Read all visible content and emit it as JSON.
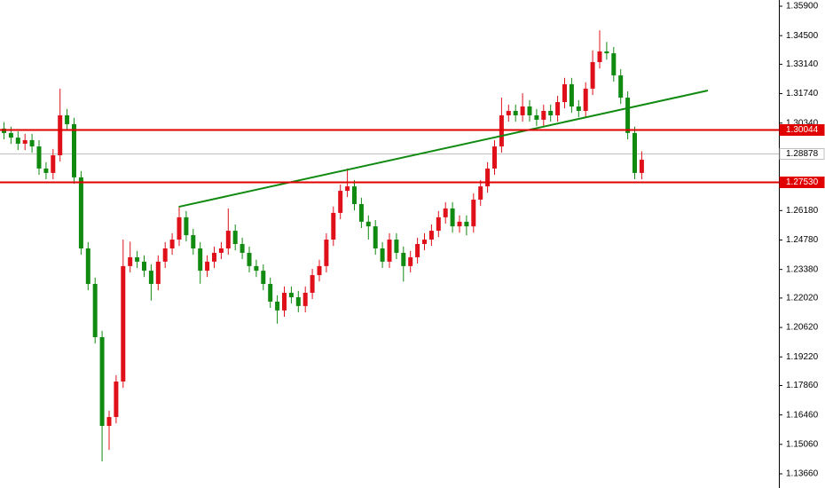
{
  "chart_data": {
    "type": "candlestick",
    "ylim": [
      1.12985,
      1.36195
    ],
    "yticks": [
      {
        "value": 1.359,
        "label": "1.35900"
      },
      {
        "value": 1.345,
        "label": "1.34500"
      },
      {
        "value": 1.3314,
        "label": "1.33140"
      },
      {
        "value": 1.3174,
        "label": "1.31740"
      },
      {
        "value": 1.3034,
        "label": "1.30340"
      },
      {
        "value": 1.2618,
        "label": "1.26180"
      },
      {
        "value": 1.2478,
        "label": "1.24780"
      },
      {
        "value": 1.2338,
        "label": "1.23380"
      },
      {
        "value": 1.2202,
        "label": "1.22020"
      },
      {
        "value": 1.2062,
        "label": "1.20620"
      },
      {
        "value": 1.1922,
        "label": "1.19220"
      },
      {
        "value": 1.1786,
        "label": "1.17860"
      },
      {
        "value": 1.1646,
        "label": "1.16460"
      },
      {
        "value": 1.1506,
        "label": "1.15060"
      },
      {
        "value": 1.1366,
        "label": "1.13660"
      }
    ],
    "up_color": "#e0101a",
    "down_color": "#108a10",
    "levels": [
      {
        "value": 1.30044,
        "label": "1.30044",
        "color": "#e00000"
      },
      {
        "value": 1.2753,
        "label": "1.27530",
        "color": "#e00000"
      }
    ],
    "current": {
      "value": 1.28878,
      "label": "1.28878",
      "color": "#c0c0c0"
    },
    "trendline": {
      "start": 1.2636,
      "end": 1.3189,
      "color": "#108a10"
    },
    "candles": [
      [
        1.3008,
        1.3038,
        1.2957,
        1.2987
      ],
      [
        1.2987,
        1.3017,
        1.2935,
        1.2965
      ],
      [
        1.2965,
        1.2995,
        1.2906,
        1.2936
      ],
      [
        1.2936,
        1.2983,
        1.2906,
        1.2953
      ],
      [
        1.2953,
        1.2983,
        1.2893,
        1.2923
      ],
      [
        1.2923,
        1.2953,
        1.2788,
        1.2818
      ],
      [
        1.2818,
        1.2848,
        1.2767,
        1.2797
      ],
      [
        1.2797,
        1.2911,
        1.2767,
        1.2881
      ],
      [
        1.2881,
        1.3198,
        1.2851,
        1.3071
      ],
      [
        1.3071,
        1.3101,
        1.2999,
        1.3029
      ],
      [
        1.3029,
        1.3059,
        1.2746,
        1.2776
      ],
      [
        1.2776,
        1.2806,
        1.2408,
        1.2438
      ],
      [
        1.2438,
        1.2468,
        1.2239,
        1.2269
      ],
      [
        1.2269,
        1.2299,
        1.1986,
        1.2016
      ],
      [
        1.2016,
        1.2046,
        1.1425,
        1.1594
      ],
      [
        1.1594,
        1.1666,
        1.148,
        1.1636
      ],
      [
        1.1636,
        1.1835,
        1.1606,
        1.1805
      ],
      [
        1.1805,
        1.248,
        1.1775,
        1.2354
      ],
      [
        1.2354,
        1.247,
        1.2324,
        1.2396
      ],
      [
        1.2396,
        1.2426,
        1.2345,
        1.2375
      ],
      [
        1.2375,
        1.2405,
        1.2302,
        1.2332
      ],
      [
        1.2332,
        1.2362,
        1.219,
        1.2269
      ],
      [
        1.2269,
        1.2405,
        1.2239,
        1.2375
      ],
      [
        1.2375,
        1.2468,
        1.2345,
        1.2438
      ],
      [
        1.2438,
        1.251,
        1.2408,
        1.248
      ],
      [
        1.248,
        1.2636,
        1.245,
        1.2586
      ],
      [
        1.2586,
        1.2616,
        1.2471,
        1.2501
      ],
      [
        1.2501,
        1.2531,
        1.2408,
        1.2438
      ],
      [
        1.2438,
        1.2468,
        1.227,
        1.2332
      ],
      [
        1.2332,
        1.2405,
        1.2302,
        1.2375
      ],
      [
        1.2375,
        1.2447,
        1.2345,
        1.2417
      ],
      [
        1.2417,
        1.2468,
        1.2387,
        1.2438
      ],
      [
        1.2438,
        1.2628,
        1.2408,
        1.2522
      ],
      [
        1.2522,
        1.2552,
        1.2429,
        1.2459
      ],
      [
        1.2459,
        1.2489,
        1.2387,
        1.2417
      ],
      [
        1.2417,
        1.2447,
        1.2324,
        1.2354
      ],
      [
        1.2354,
        1.2384,
        1.2302,
        1.2332
      ],
      [
        1.2332,
        1.2362,
        1.2239,
        1.2269
      ],
      [
        1.2269,
        1.2299,
        1.2155,
        1.2185
      ],
      [
        1.2185,
        1.2215,
        1.208,
        1.2143
      ],
      [
        1.2143,
        1.2257,
        1.2113,
        1.2227
      ],
      [
        1.2227,
        1.2257,
        1.2176,
        1.2206
      ],
      [
        1.2206,
        1.2236,
        1.2134,
        1.2164
      ],
      [
        1.2164,
        1.2257,
        1.2134,
        1.2227
      ],
      [
        1.2227,
        1.2341,
        1.2197,
        1.2311
      ],
      [
        1.2311,
        1.2384,
        1.2281,
        1.2354
      ],
      [
        1.2354,
        1.251,
        1.2324,
        1.248
      ],
      [
        1.248,
        1.2637,
        1.245,
        1.2607
      ],
      [
        1.2607,
        1.2742,
        1.2577,
        1.2712
      ],
      [
        1.2712,
        1.2818,
        1.2682,
        1.2733
      ],
      [
        1.2733,
        1.2763,
        1.2619,
        1.2649
      ],
      [
        1.2649,
        1.2679,
        1.2535,
        1.2565
      ],
      [
        1.2565,
        1.2595,
        1.248,
        1.2543
      ],
      [
        1.2543,
        1.2573,
        1.2408,
        1.2438
      ],
      [
        1.2438,
        1.2468,
        1.2345,
        1.2375
      ],
      [
        1.2375,
        1.251,
        1.2345,
        1.248
      ],
      [
        1.248,
        1.251,
        1.2387,
        1.2417
      ],
      [
        1.2417,
        1.2447,
        1.228,
        1.2354
      ],
      [
        1.2354,
        1.2426,
        1.2324,
        1.2396
      ],
      [
        1.2396,
        1.2489,
        1.2366,
        1.2459
      ],
      [
        1.2459,
        1.251,
        1.2429,
        1.248
      ],
      [
        1.248,
        1.2552,
        1.245,
        1.2522
      ],
      [
        1.2522,
        1.2616,
        1.2492,
        1.2586
      ],
      [
        1.2586,
        1.2658,
        1.2556,
        1.2628
      ],
      [
        1.2628,
        1.2658,
        1.2513,
        1.2543
      ],
      [
        1.2543,
        1.2595,
        1.2513,
        1.2565
      ],
      [
        1.2565,
        1.2595,
        1.25,
        1.2543
      ],
      [
        1.2543,
        1.27,
        1.2513,
        1.267
      ],
      [
        1.267,
        1.2763,
        1.264,
        1.2733
      ],
      [
        1.2733,
        1.2848,
        1.2703,
        1.2818
      ],
      [
        1.2818,
        1.2953,
        1.2788,
        1.2923
      ],
      [
        1.2923,
        1.3155,
        1.2893,
        1.3071
      ],
      [
        1.3071,
        1.3122,
        1.3041,
        1.3092
      ],
      [
        1.3092,
        1.3122,
        1.3041,
        1.3071
      ],
      [
        1.3071,
        1.3176,
        1.3041,
        1.3113
      ],
      [
        1.3113,
        1.3143,
        1.3041,
        1.3071
      ],
      [
        1.3071,
        1.3101,
        1.302,
        1.305
      ],
      [
        1.305,
        1.3122,
        1.302,
        1.3092
      ],
      [
        1.3092,
        1.3122,
        1.3041,
        1.3071
      ],
      [
        1.3071,
        1.3164,
        1.3041,
        1.3134
      ],
      [
        1.3134,
        1.3249,
        1.3104,
        1.3219
      ],
      [
        1.3219,
        1.3249,
        1.3083,
        1.3113
      ],
      [
        1.3113,
        1.3143,
        1.3062,
        1.3092
      ],
      [
        1.3092,
        1.3228,
        1.3062,
        1.3198
      ],
      [
        1.3198,
        1.338,
        1.3168,
        1.3324
      ],
      [
        1.3324,
        1.3475,
        1.3294,
        1.3375
      ],
      [
        1.3375,
        1.342,
        1.3336,
        1.3366
      ],
      [
        1.3366,
        1.3396,
        1.3231,
        1.3261
      ],
      [
        1.3261,
        1.3291,
        1.3125,
        1.3155
      ],
      [
        1.3155,
        1.3185,
        1.2957,
        1.2987
      ],
      [
        1.2987,
        1.3017,
        1.2767,
        1.2797
      ],
      [
        1.2797,
        1.29,
        1.2767,
        1.286
      ]
    ]
  }
}
